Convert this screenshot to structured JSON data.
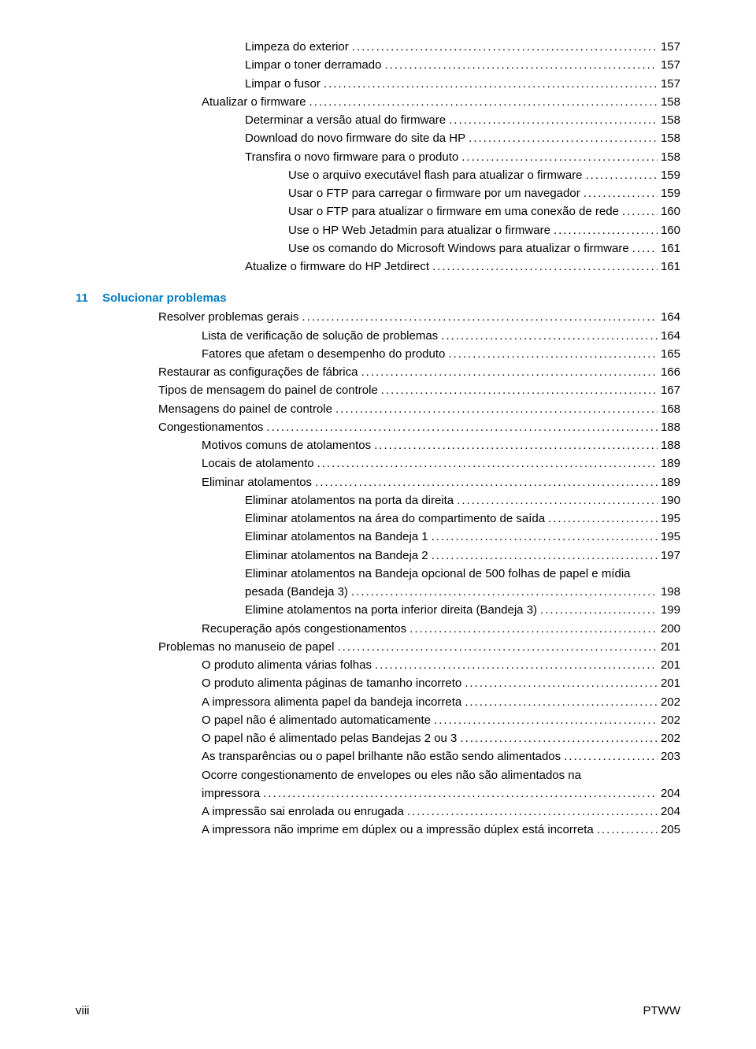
{
  "section1": {
    "lines": [
      {
        "indent": 3,
        "label": "Limpeza do exterior",
        "page": "157"
      },
      {
        "indent": 3,
        "label": "Limpar o toner derramado",
        "page": "157"
      },
      {
        "indent": 3,
        "label": "Limpar o fusor",
        "page": "157"
      },
      {
        "indent": 2,
        "label": "Atualizar o firmware",
        "page": "158"
      },
      {
        "indent": 3,
        "label": "Determinar a versão atual do firmware",
        "page": "158"
      },
      {
        "indent": 3,
        "label": "Download do novo firmware do site da HP",
        "page": "158"
      },
      {
        "indent": 3,
        "label": "Transfira o novo firmware para o produto",
        "page": "158"
      },
      {
        "indent": 4,
        "label": "Use o arquivo executável flash para atualizar o firmware",
        "page": "159"
      },
      {
        "indent": 4,
        "label": "Usar o FTP para carregar o firmware por um navegador",
        "page": "159"
      },
      {
        "indent": 4,
        "label": "Usar o FTP para atualizar o firmware em uma conexão de rede",
        "page": "160"
      },
      {
        "indent": 4,
        "label": "Use o HP Web Jetadmin para atualizar o firmware",
        "page": "160"
      },
      {
        "indent": 4,
        "label": "Use os comando do Microsoft Windows para atualizar o firmware",
        "page": "161"
      },
      {
        "indent": 3,
        "label": "Atualize o firmware do HP Jetdirect",
        "page": "161"
      }
    ]
  },
  "section_header": {
    "number": "11",
    "title": "Solucionar problemas"
  },
  "section2": {
    "lines": [
      {
        "indent": 1,
        "label": "Resolver problemas gerais",
        "page": "164"
      },
      {
        "indent": 2,
        "label": "Lista de verificação de solução de problemas",
        "page": "164"
      },
      {
        "indent": 2,
        "label": "Fatores que afetam o desempenho do produto",
        "page": "165"
      },
      {
        "indent": 1,
        "label": "Restaurar as configurações de fábrica",
        "page": "166"
      },
      {
        "indent": 1,
        "label": "Tipos de mensagem do painel de controle",
        "page": "167"
      },
      {
        "indent": 1,
        "label": "Mensagens do painel de controle",
        "page": "168"
      },
      {
        "indent": 1,
        "label": "Congestionamentos",
        "page": "188"
      },
      {
        "indent": 2,
        "label": "Motivos comuns de atolamentos",
        "page": "188"
      },
      {
        "indent": 2,
        "label": "Locais de atolamento",
        "page": "189"
      },
      {
        "indent": 2,
        "label": "Eliminar atolamentos",
        "page": "189"
      },
      {
        "indent": 3,
        "label": "Eliminar atolamentos na porta da direita",
        "page": "190"
      },
      {
        "indent": 3,
        "label": "Eliminar atolamentos na área do compartimento de saída",
        "page": "195"
      },
      {
        "indent": 3,
        "label": "Eliminar atolamentos na Bandeja 1",
        "page": "195"
      },
      {
        "indent": 3,
        "label": "Eliminar atolamentos na Bandeja 2",
        "page": "197"
      }
    ]
  },
  "multiline1": {
    "indent": 3,
    "line1": "Eliminar atolamentos na Bandeja opcional de 500 folhas de papel e mídia",
    "line2": "pesada (Bandeja 3)",
    "page": "198"
  },
  "section3": {
    "lines": [
      {
        "indent": 3,
        "label": "Elimine atolamentos na porta inferior direita (Bandeja 3)",
        "page": "199"
      },
      {
        "indent": 2,
        "label": "Recuperação após congestionamentos",
        "page": "200"
      },
      {
        "indent": 1,
        "label": "Problemas no manuseio de papel",
        "page": "201"
      },
      {
        "indent": 2,
        "label": "O produto alimenta várias folhas",
        "page": "201"
      },
      {
        "indent": 2,
        "label": "O produto alimenta páginas de tamanho incorreto",
        "page": "201"
      },
      {
        "indent": 2,
        "label": "A impressora alimenta papel da bandeja incorreta",
        "page": "202"
      },
      {
        "indent": 2,
        "label": "O papel não é alimentado automaticamente",
        "page": "202"
      },
      {
        "indent": 2,
        "label": "O papel não é alimentado pelas Bandejas 2 ou 3",
        "page": "202"
      },
      {
        "indent": 2,
        "label": "As transparências ou o papel brilhante não estão sendo alimentados",
        "page": "203"
      }
    ]
  },
  "multiline2": {
    "indent": 2,
    "line1": "Ocorre congestionamento de envelopes ou eles não são alimentados na",
    "line2": "impressora",
    "page": "204"
  },
  "section4": {
    "lines": [
      {
        "indent": 2,
        "label": "A impressão sai enrolada ou enrugada",
        "page": "204"
      },
      {
        "indent": 2,
        "label": "A impressora não imprime em dúplex ou a impressão dúplex está incorreta",
        "page": "205"
      }
    ]
  },
  "footer": {
    "left": "viii",
    "right": "PTWW"
  },
  "colors": {
    "heading": "#007cc3",
    "text": "#000000",
    "background": "#ffffff"
  },
  "fontsize_pt": 11
}
